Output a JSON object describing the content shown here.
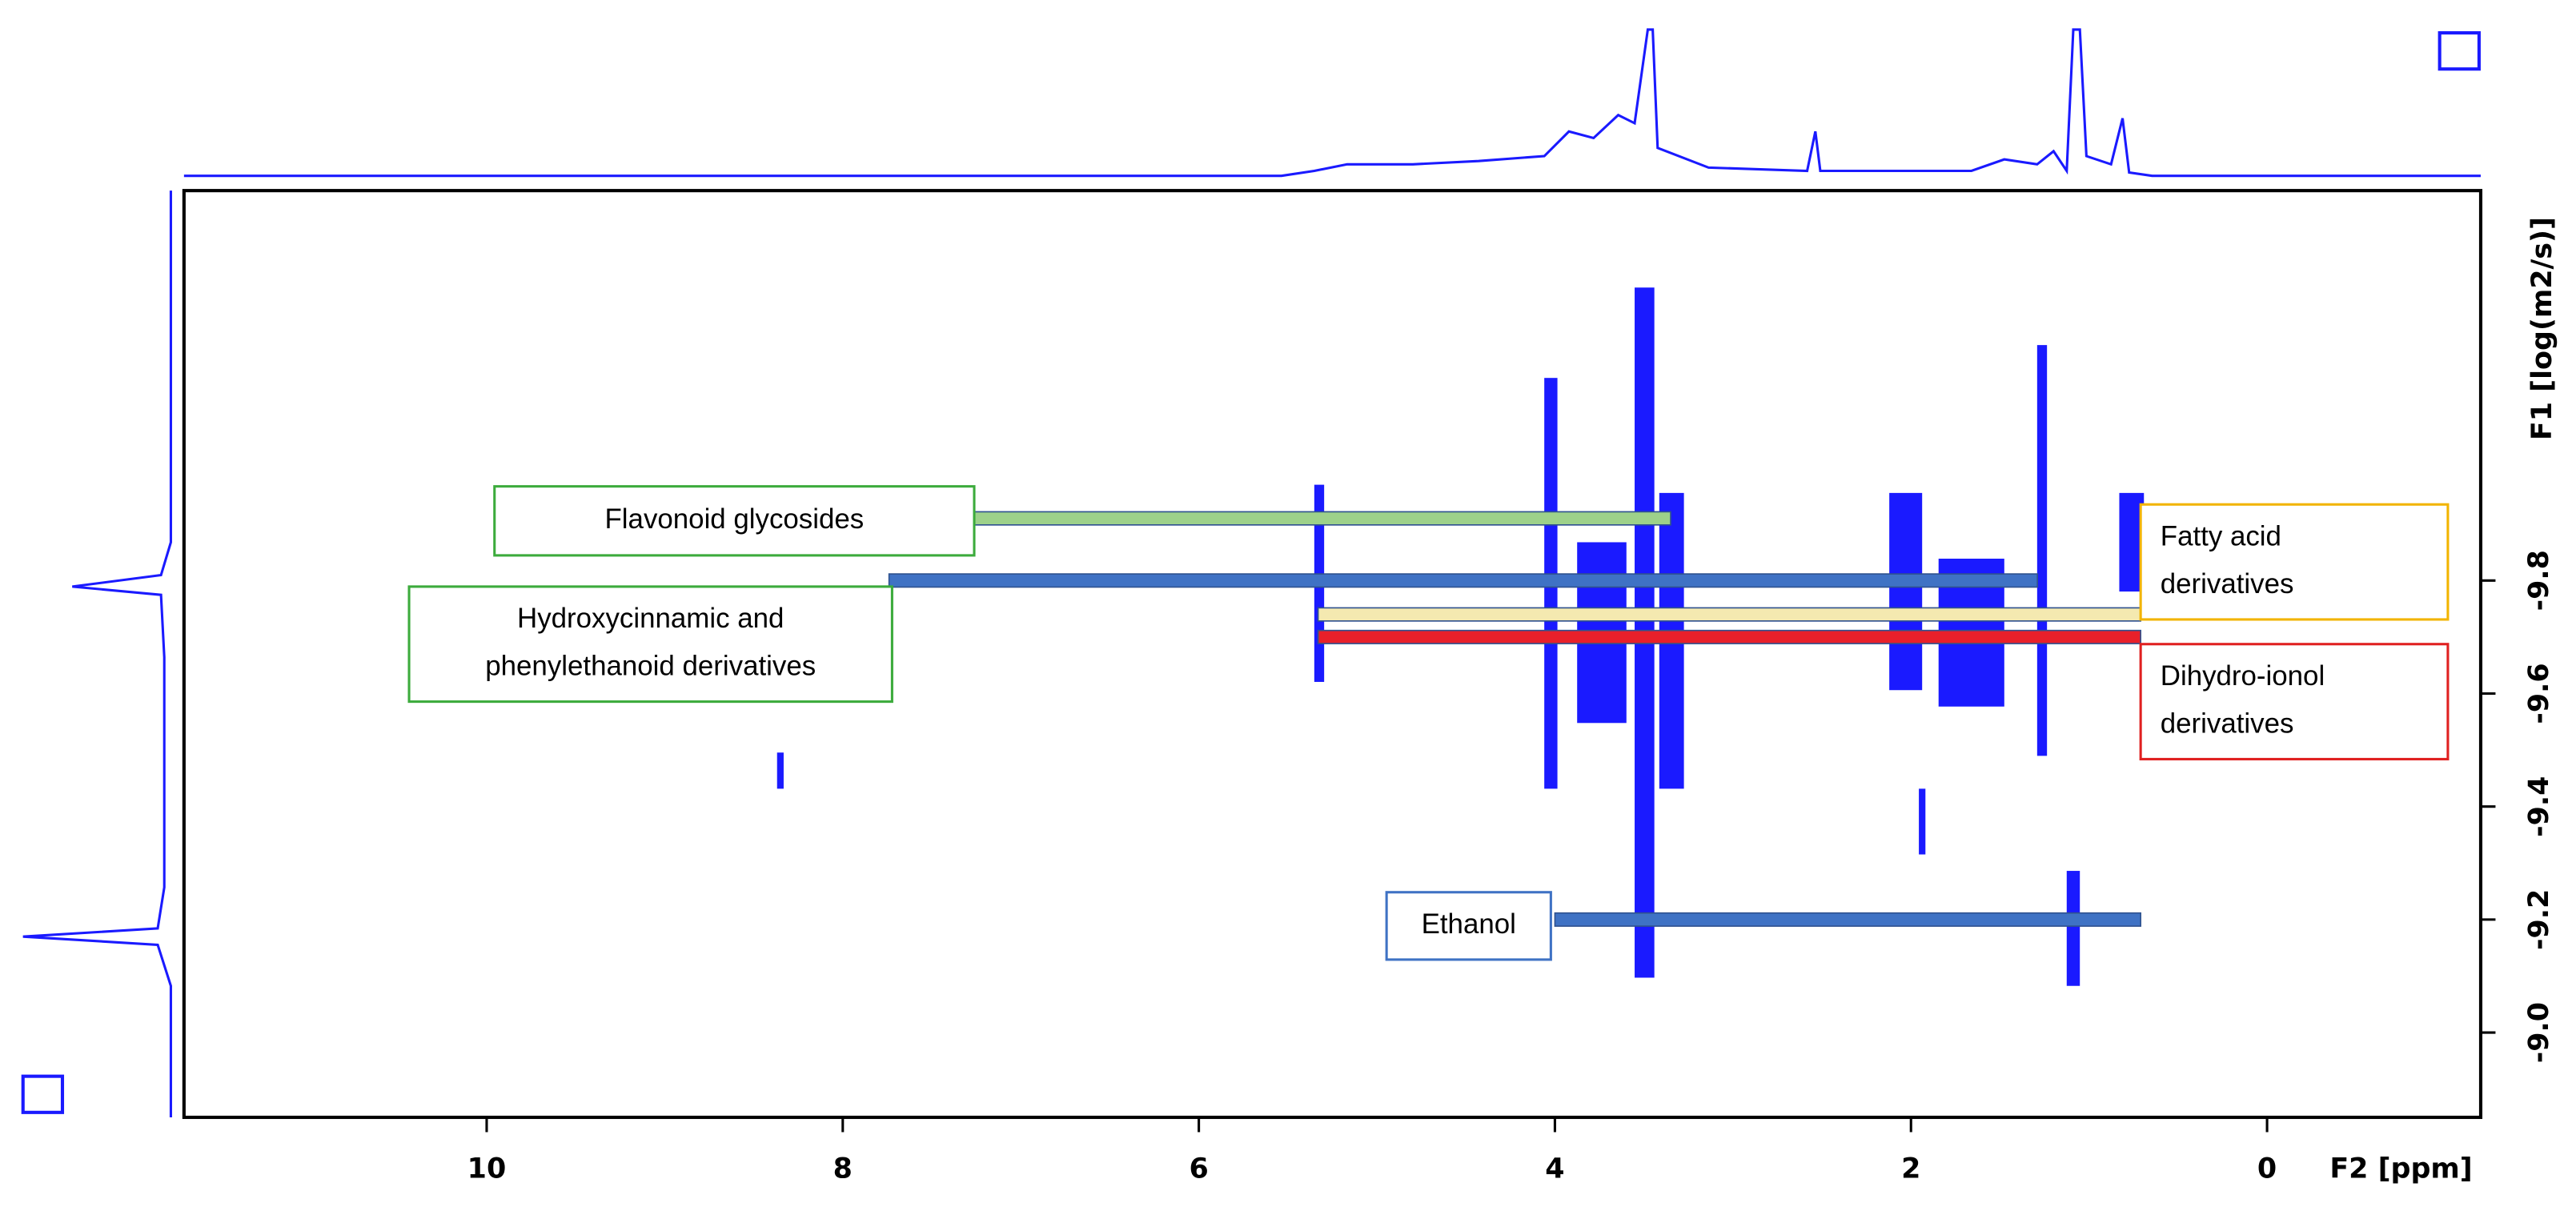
{
  "chart_data": {
    "type": "dosy",
    "x_label": "F2 [ppm]",
    "y_label": "F1 [log(m2/s)]",
    "xlim": [
      11.7,
      -1.2
    ],
    "ylim": [
      -8.85,
      -10.49
    ],
    "xticks": [
      10,
      8,
      6,
      4,
      2,
      0
    ],
    "yticks": [
      {
        "value": -9,
        "label": "-9.0"
      },
      -9.2,
      -9.4,
      -9.6,
      -9.8
    ],
    "color": "#1a1aff",
    "annotations": [
      {
        "lines": [
          "Flavonoid glycosides"
        ],
        "x": [
          7.29,
          3.35
        ],
        "y": -9.91,
        "color": "#9dd18a",
        "border": "#3cab3c"
      },
      {
        "lines": [
          "Hydroxycinnamic and",
          "phenylethanoid derivatives"
        ],
        "x": [
          7.74,
          1.29
        ],
        "y": -9.8,
        "color": "#3f72c4",
        "border": "#3cab3c"
      },
      {
        "lines": [
          "Fatty acid",
          "derivatives"
        ],
        "x": [
          5.33,
          0.71
        ],
        "y": -9.74,
        "color": "#f4e9b0",
        "border": "#f2b400"
      },
      {
        "lines": [
          "Dihydro-ionol",
          "derivatives"
        ],
        "x": [
          5.33,
          0.71
        ],
        "y": -9.7,
        "color": "#e8202a",
        "border": "#e02020"
      },
      {
        "lines": [
          "Ethanol"
        ],
        "x": [
          4.0,
          0.71
        ],
        "y": -9.2,
        "color": "#3f72c4",
        "border": "#3f72c4"
      }
    ]
  }
}
